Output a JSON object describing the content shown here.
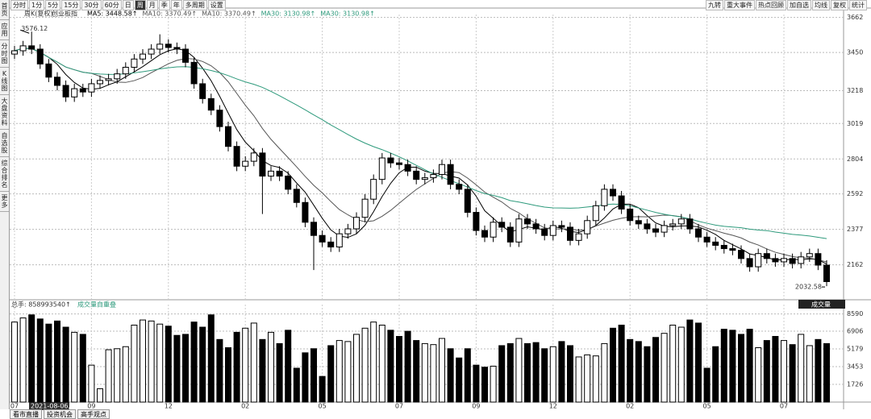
{
  "toolbar": {
    "periods": [
      "分时",
      "1分",
      "5分",
      "15分",
      "30分",
      "60分",
      "日",
      "周",
      "月",
      "季",
      "年",
      "多周期",
      "设置"
    ],
    "selected": "周",
    "right": [
      "九转",
      "重大事件",
      "热点回顾",
      "加自选",
      "均线",
      "复权",
      "统计"
    ]
  },
  "sidebar": [
    "首页",
    "应用",
    "分时图",
    "K线图",
    "大盘资料",
    "自选股",
    "综合排名",
    "更多"
  ],
  "bottom_tabs": [
    "看市直播",
    "投资机会",
    "高手观点"
  ],
  "chart_data": {
    "type": "candlestick",
    "title": "创业板指",
    "subtitle": "周K(复权)",
    "legend": [
      {
        "label": "MA5: 3448.58↑",
        "color": "#000000"
      },
      {
        "label": "MA10: 3370.49↑",
        "color": "#555555"
      },
      {
        "label": "MA10: 3370.49↑",
        "color": "#555555"
      },
      {
        "label": "MA30: 3130.98↑",
        "color": "#2e9a7c"
      },
      {
        "label": "MA30: 3130.98↑",
        "color": "#2e9a7c"
      }
    ],
    "cursor_date": "2021-08-06,五",
    "categories": [
      "07",
      null,
      null,
      null,
      null,
      null,
      null,
      null,
      null,
      "09",
      null,
      null,
      null,
      null,
      null,
      null,
      null,
      null,
      "12",
      null,
      null,
      null,
      null,
      null,
      null,
      null,
      null,
      "02",
      null,
      null,
      null,
      null,
      null,
      null,
      null,
      null,
      "05",
      null,
      null,
      null,
      null,
      null,
      null,
      null,
      null,
      "07",
      null,
      null,
      null,
      null,
      null,
      null,
      null,
      null,
      "09",
      null,
      null,
      null,
      null,
      null,
      null,
      null,
      null,
      "12",
      null,
      null,
      null,
      null,
      null,
      null,
      null,
      null,
      "02",
      null,
      null,
      null,
      null,
      null,
      null,
      null,
      null,
      "05",
      null,
      null,
      null,
      null,
      null,
      null,
      null,
      null,
      "07",
      null,
      null,
      null,
      null,
      null
    ],
    "open": [
      3440,
      3460,
      3490,
      3470,
      3380,
      3300,
      3250,
      3180,
      3230,
      3210,
      3260,
      3280,
      3290,
      3320,
      3360,
      3410,
      3440,
      3470,
      3500,
      3480,
      3470,
      3390,
      3260,
      3170,
      3100,
      3000,
      2880,
      2760,
      2790,
      2840,
      2700,
      2730,
      2700,
      2620,
      2540,
      2420,
      2340,
      2300,
      2270,
      2350,
      2380,
      2450,
      2560,
      2680,
      2810,
      2780,
      2770,
      2730,
      2680,
      2690,
      2710,
      2770,
      2650,
      2620,
      2480,
      2370,
      2330,
      2420,
      2390,
      2300,
      2440,
      2410,
      2380,
      2340,
      2400,
      2390,
      2310,
      2350,
      2430,
      2520,
      2620,
      2580,
      2500,
      2430,
      2410,
      2380,
      2360,
      2400,
      2410,
      2440,
      2380,
      2330,
      2300,
      2280,
      2260,
      2250,
      2200,
      2150,
      2230,
      2200,
      2180,
      2200,
      2170,
      2210,
      2230,
      2160
    ],
    "high": [
      3490,
      3520,
      3576.12,
      3500,
      3410,
      3330,
      3280,
      3260,
      3260,
      3290,
      3310,
      3320,
      3350,
      3390,
      3440,
      3470,
      3500,
      3560,
      3530,
      3510,
      3500,
      3420,
      3290,
      3200,
      3130,
      3030,
      2910,
      2820,
      2870,
      2870,
      2760,
      2760,
      2730,
      2650,
      2570,
      2450,
      2370,
      2330,
      2380,
      2410,
      2480,
      2590,
      2710,
      2840,
      2840,
      2810,
      2800,
      2760,
      2720,
      2740,
      2800,
      2800,
      2680,
      2650,
      2510,
      2400,
      2450,
      2450,
      2420,
      2470,
      2470,
      2440,
      2410,
      2430,
      2430,
      2420,
      2380,
      2460,
      2550,
      2650,
      2650,
      2610,
      2530,
      2460,
      2440,
      2410,
      2430,
      2440,
      2470,
      2470,
      2410,
      2360,
      2330,
      2310,
      2290,
      2280,
      2230,
      2260,
      2260,
      2230,
      2230,
      2230,
      2240,
      2260,
      2260,
      2190
    ],
    "low": [
      3410,
      3430,
      3440,
      3350,
      3270,
      3220,
      3150,
      3150,
      3180,
      3180,
      3230,
      3250,
      3260,
      3290,
      3330,
      3380,
      3410,
      3440,
      3450,
      3440,
      3360,
      3230,
      3140,
      3070,
      2970,
      2850,
      2730,
      2730,
      2760,
      2470,
      2670,
      2670,
      2590,
      2510,
      2390,
      2130,
      2270,
      2240,
      2240,
      2320,
      2350,
      2420,
      2530,
      2650,
      2750,
      2740,
      2700,
      2650,
      2650,
      2660,
      2680,
      2620,
      2590,
      2450,
      2340,
      2300,
      2300,
      2360,
      2270,
      2270,
      2380,
      2350,
      2310,
      2310,
      2360,
      2280,
      2280,
      2320,
      2400,
      2490,
      2550,
      2470,
      2400,
      2380,
      2350,
      2330,
      2330,
      2370,
      2380,
      2350,
      2300,
      2270,
      2250,
      2230,
      2220,
      2170,
      2120,
      2120,
      2170,
      2150,
      2150,
      2140,
      2140,
      2180,
      2130,
      2032.58
    ],
    "close": [
      3460,
      3490,
      3470,
      3380,
      3300,
      3250,
      3180,
      3230,
      3210,
      3260,
      3280,
      3290,
      3320,
      3360,
      3410,
      3440,
      3470,
      3500,
      3480,
      3470,
      3390,
      3260,
      3170,
      3100,
      3000,
      2880,
      2760,
      2790,
      2840,
      2700,
      2730,
      2700,
      2620,
      2540,
      2420,
      2340,
      2300,
      2270,
      2350,
      2380,
      2450,
      2560,
      2680,
      2810,
      2780,
      2770,
      2730,
      2680,
      2690,
      2710,
      2770,
      2650,
      2620,
      2480,
      2370,
      2330,
      2420,
      2390,
      2300,
      2440,
      2410,
      2380,
      2340,
      2400,
      2390,
      2310,
      2350,
      2430,
      2520,
      2620,
      2580,
      2500,
      2430,
      2410,
      2380,
      2360,
      2400,
      2410,
      2440,
      2380,
      2330,
      2300,
      2280,
      2260,
      2250,
      2200,
      2150,
      2230,
      2200,
      2180,
      2200,
      2170,
      2210,
      2230,
      2160,
      2060
    ],
    "ylim": [
      1950,
      3680
    ],
    "yticks": [
      3662,
      3450,
      3218,
      3019,
      2804,
      2592,
      2377,
      2162
    ],
    "volume_header": "总手: 858993540↑",
    "volume_title": "成交量自重叠",
    "volume_menu": "成交量",
    "volume": [
      7800,
      8200,
      8500,
      8100,
      7600,
      7900,
      7300,
      6800,
      6600,
      3600,
      1300,
      5100,
      5200,
      5400,
      7500,
      8000,
      7900,
      7600,
      7400,
      6500,
      6600,
      7800,
      7300,
      8500,
      6100,
      5300,
      6800,
      7200,
      7700,
      6100,
      6800,
      5700,
      7000,
      3300,
      4800,
      5200,
      2500,
      5500,
      6000,
      5900,
      6600,
      7200,
      7800,
      7500,
      7000,
      6400,
      6900,
      6000,
      5700,
      5600,
      6200,
      5200,
      4300,
      5200,
      3600,
      3400,
      3500,
      5500,
      5700,
      6200,
      5700,
      5800,
      5200,
      5400,
      5900,
      5500,
      4400,
      4600,
      4500,
      5700,
      7200,
      7500,
      6100,
      5900,
      5400,
      6300,
      6700,
      7500,
      7300,
      8000,
      7700,
      3300,
      5400,
      7100,
      7000,
      6600,
      7100,
      5300,
      6000,
      6400,
      6000,
      5600,
      6600,
      5500,
      6100,
      5700
    ],
    "vlim": [
      0,
      9030
    ],
    "vticks": [
      8590,
      6906,
      5179,
      3453,
      1726
    ],
    "grid": true,
    "up_color": "#ffffff",
    "down_color": "#000000"
  }
}
